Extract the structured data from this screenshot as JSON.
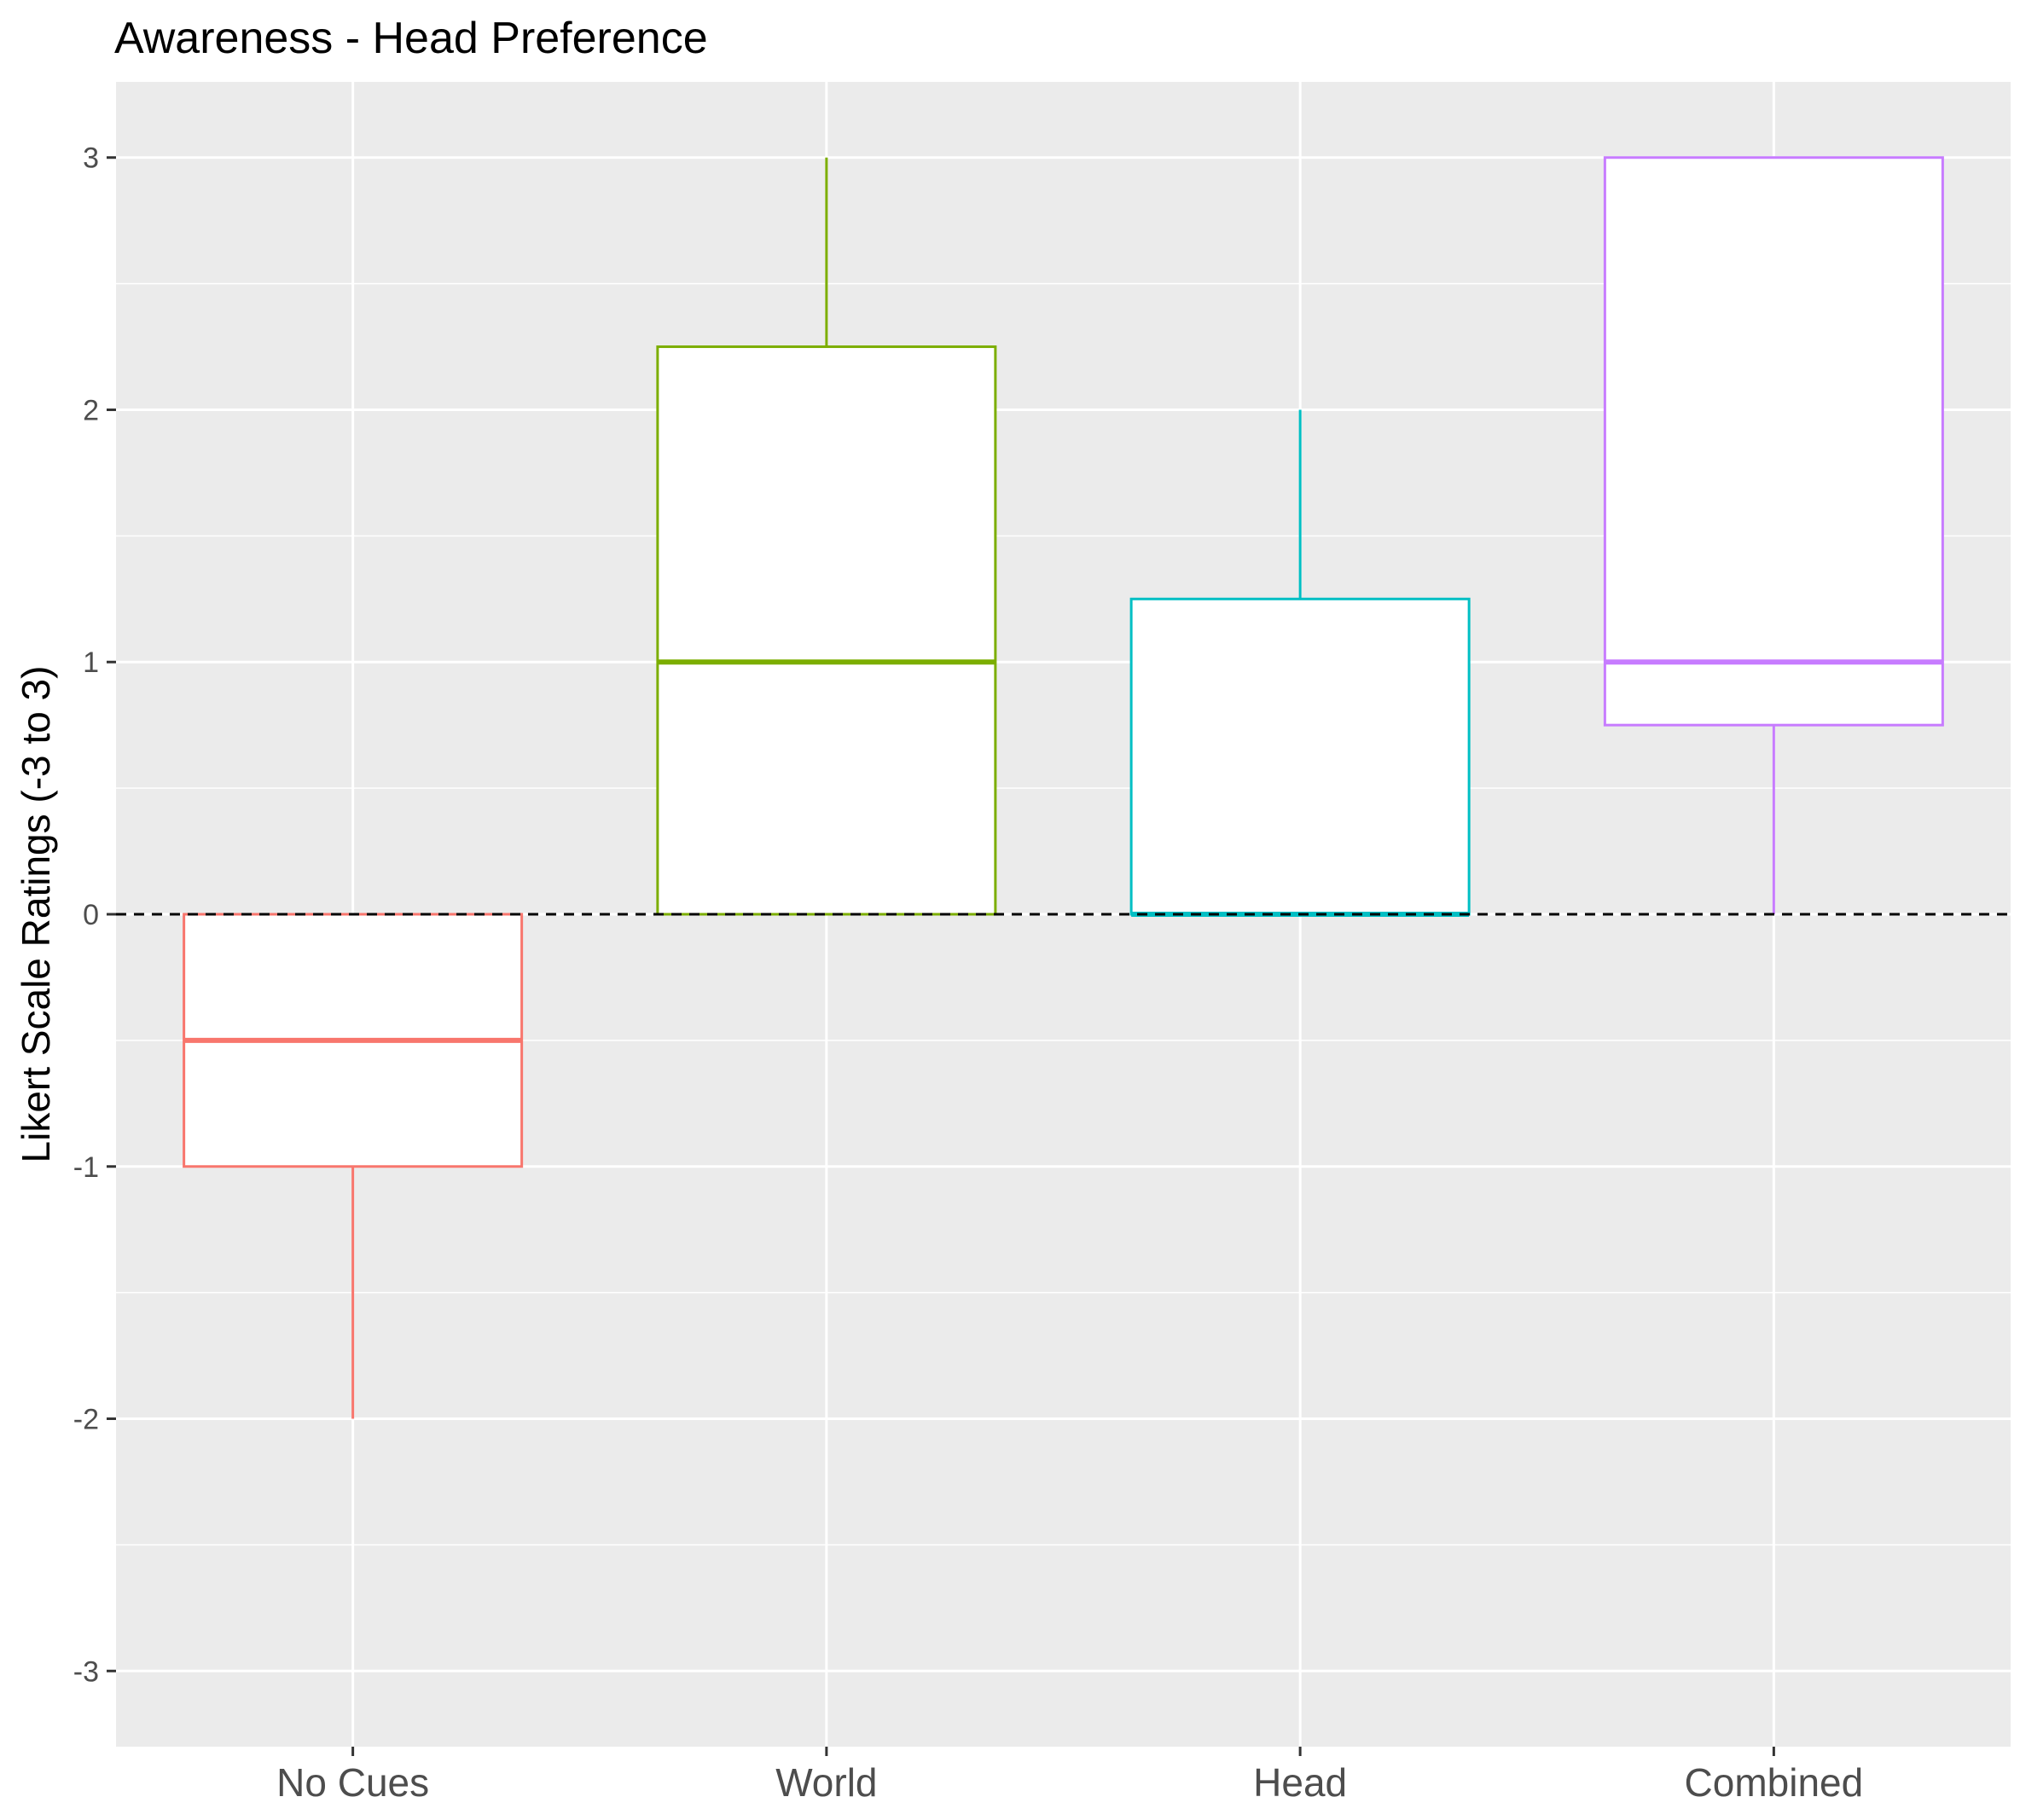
{
  "chart_data": {
    "type": "boxplot",
    "title": "Awareness - Head Preference",
    "xlabel": "",
    "ylabel": "Likert Scale Ratings (-3 to 3)",
    "ylim": [
      -3.3,
      3.3
    ],
    "yticks": [
      "3",
      "2",
      "1",
      "0",
      "-1",
      "-2",
      "-3"
    ],
    "ytick_values": [
      3,
      2,
      1,
      0,
      -1,
      -2,
      -3
    ],
    "categories": [
      "No Cues",
      "World",
      "Head",
      "Combined"
    ],
    "grid": true,
    "reference_line": {
      "y": 0,
      "style": "dashed",
      "color": "#000000"
    },
    "boxes": [
      {
        "category": "No Cues",
        "min": -2,
        "q1": -1,
        "median": -0.5,
        "q3": 0,
        "max": 0,
        "color": "#F8766D"
      },
      {
        "category": "World",
        "min": 0,
        "q1": 0,
        "median": 1,
        "q3": 2.25,
        "max": 3,
        "color": "#7CAE00"
      },
      {
        "category": "Head",
        "min": 0,
        "q1": 0,
        "median": 0,
        "q3": 1.25,
        "max": 2,
        "color": "#00BFC4"
      },
      {
        "category": "Combined",
        "min": 0,
        "q1": 0.75,
        "median": 1,
        "q3": 3,
        "max": 3,
        "color": "#C77CFF"
      }
    ],
    "panel_background": "#EBEBEB",
    "gridline_color": "#FFFFFF"
  }
}
